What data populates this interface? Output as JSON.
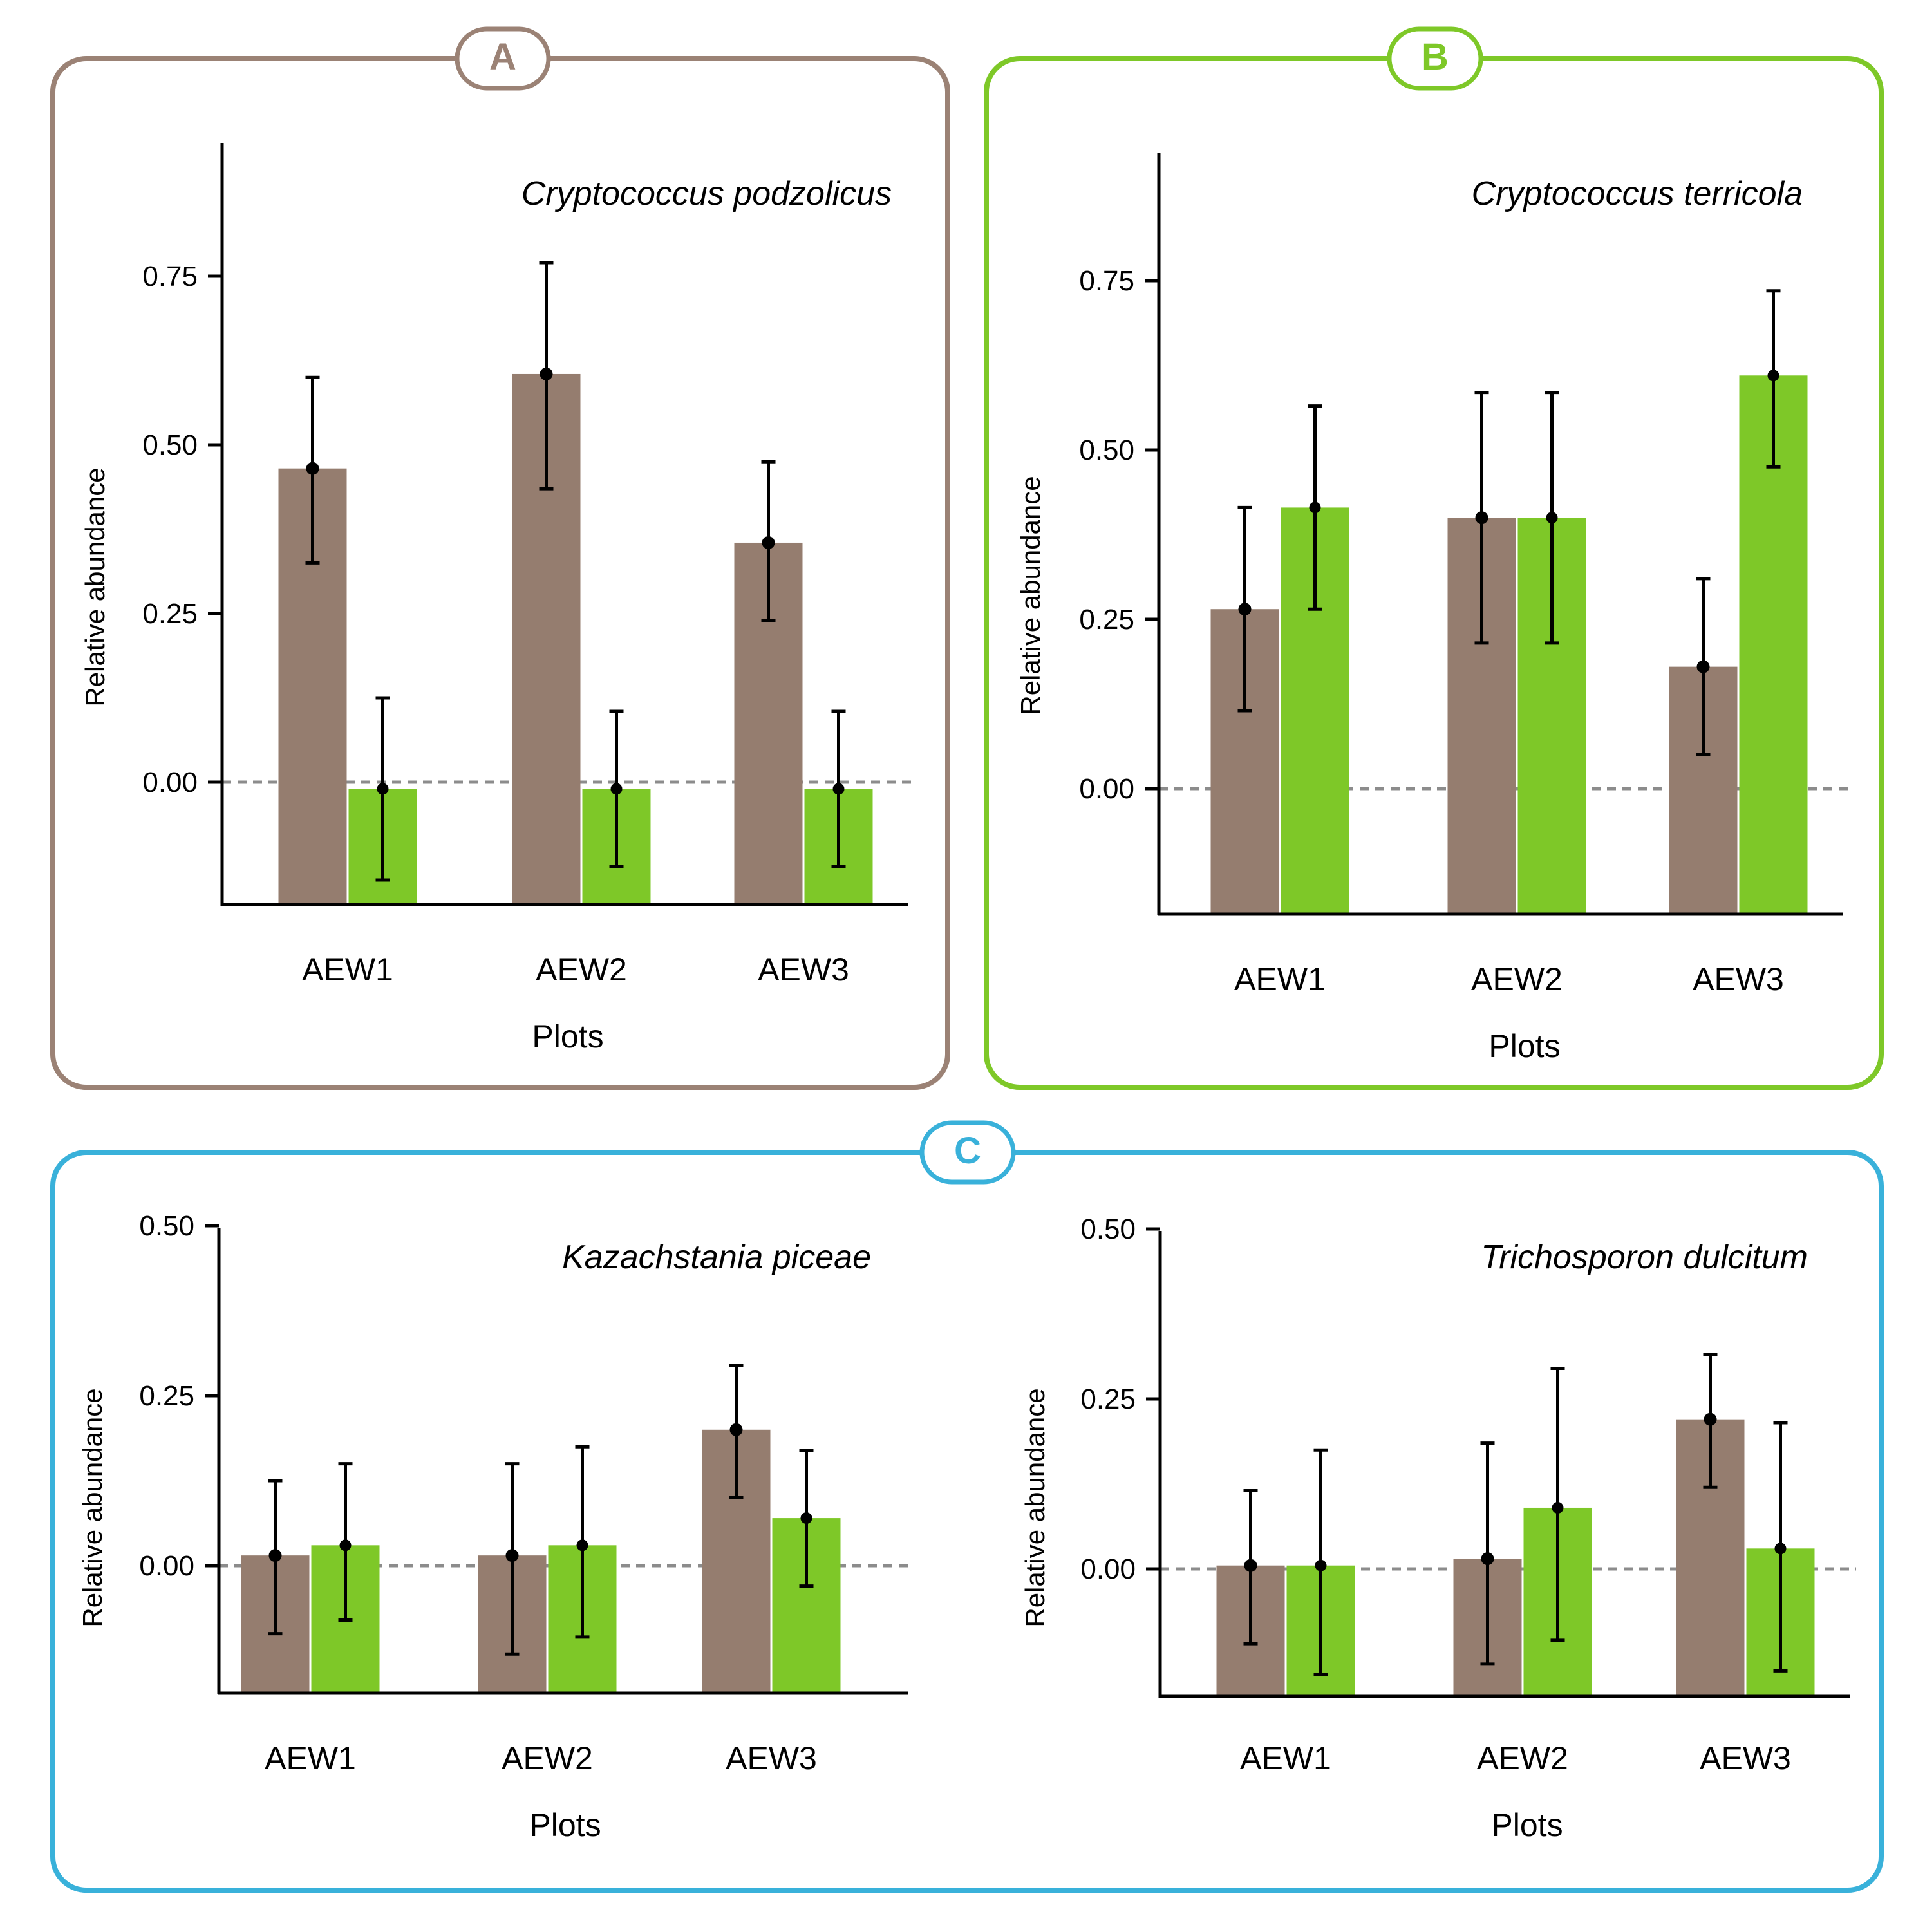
{
  "colors": {
    "brown": "#957d6f",
    "green": "#7ec828",
    "panel_a": "#9b8275",
    "panel_b": "#7ec828",
    "panel_c": "#39b1da",
    "zero_line": "#8c8c8c"
  },
  "panels": [
    {
      "letter": "A"
    },
    {
      "letter": "B"
    },
    {
      "letter": "C"
    }
  ],
  "chart_data": [
    {
      "type": "bar",
      "title": "Cryptococcus podzolicus",
      "xlabel": "Plots",
      "ylabel": "Relative abundance",
      "categories": [
        "AEW1",
        "AEW2",
        "AEW3"
      ],
      "yticks": [
        "0.00",
        "0.25",
        "0.50",
        "0.75"
      ],
      "ylim": [
        -0.18,
        0.95
      ],
      "series": [
        {
          "name": "brown",
          "values": [
            0.465,
            0.605,
            0.355
          ],
          "err_low": [
            0.325,
            0.435,
            0.24
          ],
          "err_high": [
            0.6,
            0.77,
            0.475
          ]
        },
        {
          "name": "green",
          "values": [
            -0.01,
            -0.01,
            -0.01
          ],
          "err_low": [
            -0.145,
            -0.125,
            -0.125
          ],
          "err_high": [
            0.125,
            0.105,
            0.105
          ]
        }
      ]
    },
    {
      "type": "bar",
      "title": "Cryptococcus terricola",
      "xlabel": "Plots",
      "ylabel": "Relative abundance",
      "categories": [
        "AEW1",
        "AEW2",
        "AEW3"
      ],
      "yticks": [
        "0.00",
        "0.25",
        "0.50",
        "0.75"
      ],
      "ylim": [
        -0.18,
        0.95
      ],
      "series": [
        {
          "name": "brown",
          "values": [
            0.265,
            0.4,
            0.18
          ],
          "err_low": [
            0.115,
            0.215,
            0.05
          ],
          "err_high": [
            0.415,
            0.585,
            0.31
          ]
        },
        {
          "name": "green",
          "values": [
            0.415,
            0.4,
            0.61
          ],
          "err_low": [
            0.265,
            0.215,
            0.475
          ],
          "err_high": [
            0.565,
            0.585,
            0.735
          ]
        }
      ]
    },
    {
      "type": "bar",
      "title": "Kazachstania piceae",
      "xlabel": "Plots",
      "ylabel": "Relative abundance",
      "categories": [
        "AEW1",
        "AEW2",
        "AEW3"
      ],
      "yticks": [
        "0.00",
        "0.25",
        "0.50"
      ],
      "ylim": [
        -0.19,
        0.5
      ],
      "series": [
        {
          "name": "brown",
          "values": [
            0.015,
            0.015,
            0.2
          ],
          "err_low": [
            -0.1,
            -0.13,
            0.1
          ],
          "err_high": [
            0.125,
            0.15,
            0.295
          ]
        },
        {
          "name": "green",
          "values": [
            0.03,
            0.03,
            0.07
          ],
          "err_low": [
            -0.08,
            -0.105,
            -0.03
          ],
          "err_high": [
            0.15,
            0.175,
            0.17
          ]
        }
      ]
    },
    {
      "type": "bar",
      "title": "Trichosporon dulcitum",
      "xlabel": "Plots",
      "ylabel": "Relative abundance",
      "categories": [
        "AEW1",
        "AEW2",
        "AEW3"
      ],
      "yticks": [
        "0.00",
        "0.25",
        "0.50"
      ],
      "ylim": [
        -0.19,
        0.5
      ],
      "series": [
        {
          "name": "brown",
          "values": [
            0.005,
            0.015,
            0.22
          ],
          "err_low": [
            -0.11,
            -0.14,
            0.12
          ],
          "err_high": [
            0.115,
            0.185,
            0.315
          ]
        },
        {
          "name": "green",
          "values": [
            0.005,
            0.09,
            0.03
          ],
          "err_low": [
            -0.155,
            -0.105,
            -0.15
          ],
          "err_high": [
            0.175,
            0.295,
            0.215
          ]
        }
      ]
    }
  ]
}
